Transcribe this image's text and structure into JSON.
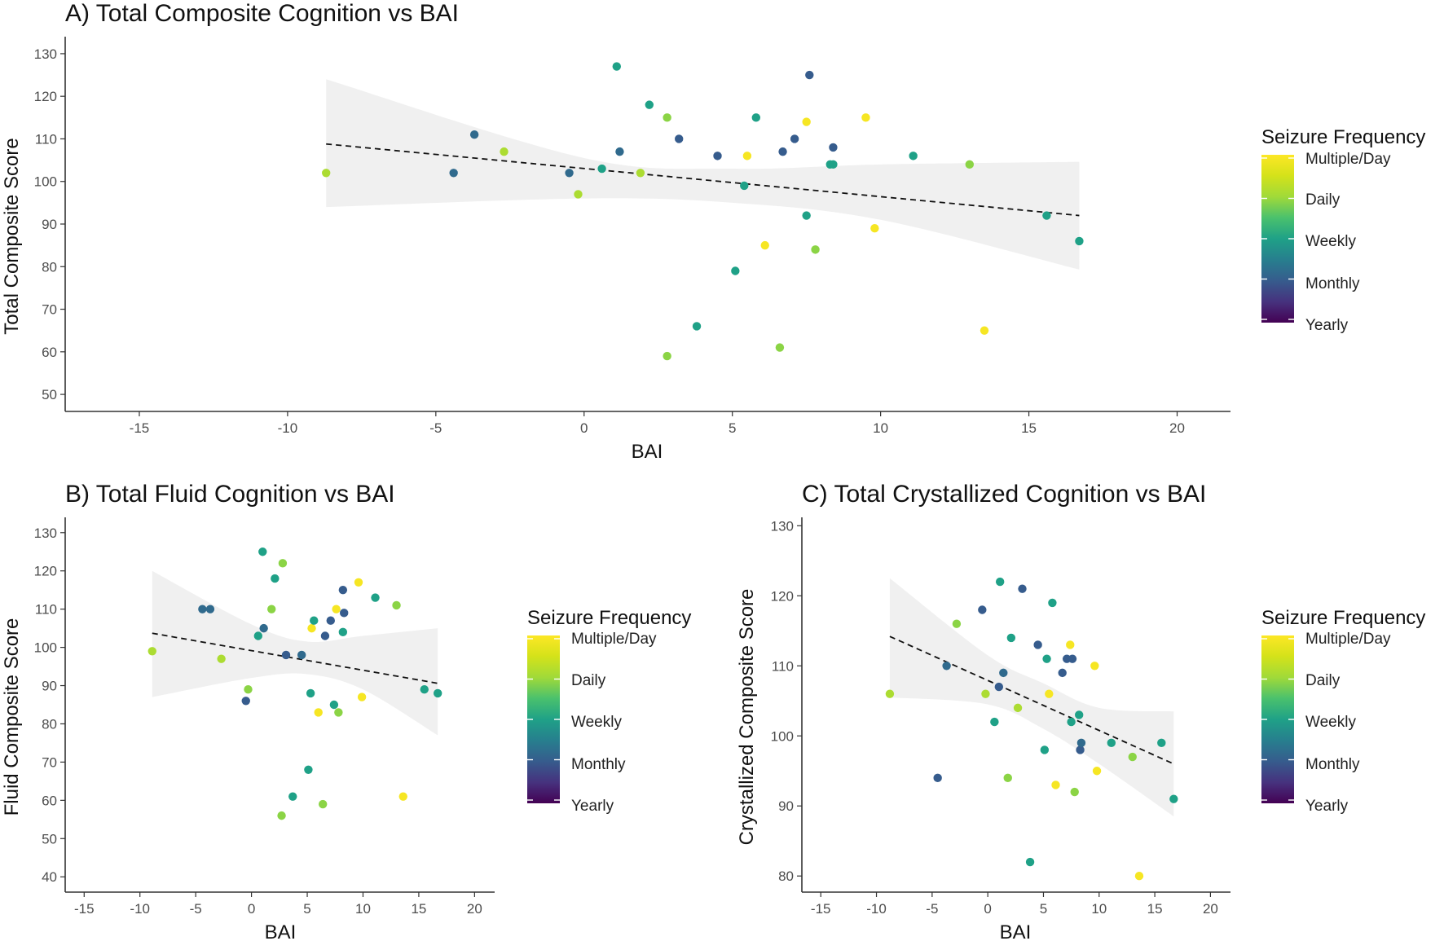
{
  "colors": {
    "Yearly": "#440154",
    "Monthly": "#3b528b",
    "Weekly": "#21908c",
    "Daily": "#5dc963",
    "Multiple/Day": "#fde725",
    "band": "#d9d9d9",
    "fit": "#111111"
  },
  "legend": {
    "title": "Seizure Frequency",
    "labels": [
      "Multiple/Day",
      "Daily",
      "Weekly",
      "Monthly",
      "Yearly"
    ]
  },
  "chart_data": [
    {
      "id": "A",
      "type": "scatter",
      "title": "A) Total Composite Cognition vs BAI",
      "xlabel": "BAI",
      "ylabel": "Total Composite Score",
      "xlim": [
        -17.5,
        21.8
      ],
      "ylim": [
        46,
        134
      ],
      "xticks": [
        -15,
        -10,
        -5,
        0,
        5,
        10,
        15,
        20
      ],
      "yticks": [
        50,
        60,
        70,
        80,
        90,
        100,
        110,
        120,
        130
      ],
      "fit": {
        "x": [
          -8.7,
          16.7
        ],
        "y": [
          108.8,
          92.0
        ]
      },
      "band": {
        "x": [
          -8.7,
          0,
          5,
          10,
          16.7
        ],
        "lower": [
          94,
          96,
          95,
          91,
          79.3
        ],
        "upper": [
          124,
          105.5,
          103,
          104,
          104.6
        ]
      },
      "points": [
        {
          "x": -8.7,
          "y": 102,
          "c": 0.78
        },
        {
          "x": -4.4,
          "y": 102,
          "c": 0.3
        },
        {
          "x": -3.7,
          "y": 111,
          "c": 0.3
        },
        {
          "x": -2.7,
          "y": 107,
          "c": 0.78
        },
        {
          "x": -0.5,
          "y": 102,
          "c": 0.3
        },
        {
          "x": -0.2,
          "y": 97,
          "c": 0.78
        },
        {
          "x": 0.6,
          "y": 103,
          "c": 0.5
        },
        {
          "x": 1.1,
          "y": 127,
          "c": 0.5
        },
        {
          "x": 1.2,
          "y": 107,
          "c": 0.3
        },
        {
          "x": 1.9,
          "y": 102,
          "c": 0.78
        },
        {
          "x": 2.2,
          "y": 118,
          "c": 0.5
        },
        {
          "x": 2.8,
          "y": 115,
          "c": 0.72
        },
        {
          "x": 2.8,
          "y": 59,
          "c": 0.72
        },
        {
          "x": 3.2,
          "y": 110,
          "c": 0.25
        },
        {
          "x": 3.8,
          "y": 66,
          "c": 0.5
        },
        {
          "x": 4.5,
          "y": 106,
          "c": 0.25
        },
        {
          "x": 5.1,
          "y": 79,
          "c": 0.5
        },
        {
          "x": 5.4,
          "y": 99,
          "c": 0.5
        },
        {
          "x": 5.5,
          "y": 106,
          "c": 0.98
        },
        {
          "x": 5.8,
          "y": 115,
          "c": 0.5
        },
        {
          "x": 6.1,
          "y": 85,
          "c": 0.98
        },
        {
          "x": 6.6,
          "y": 61,
          "c": 0.72
        },
        {
          "x": 6.7,
          "y": 107,
          "c": 0.25
        },
        {
          "x": 7.1,
          "y": 110,
          "c": 0.25
        },
        {
          "x": 7.5,
          "y": 114,
          "c": 0.98
        },
        {
          "x": 7.5,
          "y": 92,
          "c": 0.5
        },
        {
          "x": 7.6,
          "y": 125,
          "c": 0.25
        },
        {
          "x": 7.8,
          "y": 84,
          "c": 0.72
        },
        {
          "x": 8.3,
          "y": 104,
          "c": 0.5
        },
        {
          "x": 8.4,
          "y": 104,
          "c": 0.5
        },
        {
          "x": 8.4,
          "y": 108,
          "c": 0.25
        },
        {
          "x": 9.5,
          "y": 115,
          "c": 0.98
        },
        {
          "x": 9.8,
          "y": 89,
          "c": 0.98
        },
        {
          "x": 11.1,
          "y": 106,
          "c": 0.5
        },
        {
          "x": 13.0,
          "y": 104,
          "c": 0.72
        },
        {
          "x": 13.5,
          "y": 65,
          "c": 0.98
        },
        {
          "x": 15.6,
          "y": 92,
          "c": 0.5
        },
        {
          "x": 16.7,
          "y": 86,
          "c": 0.5
        }
      ]
    },
    {
      "id": "B",
      "type": "scatter",
      "title": "B) Total Fluid Cognition vs BAI",
      "xlabel": "BAI",
      "ylabel": "Fluid Composite Score",
      "xlim": [
        -16.7,
        21.8
      ],
      "ylim": [
        36,
        134
      ],
      "xticks": [
        -15,
        -10,
        -5,
        0,
        5,
        10,
        15,
        20
      ],
      "yticks": [
        40,
        50,
        60,
        70,
        80,
        90,
        100,
        110,
        120,
        130
      ],
      "fit": {
        "x": [
          -8.9,
          16.7
        ],
        "y": [
          103.7,
          90.6
        ]
      },
      "band": {
        "x": [
          -8.9,
          0,
          5,
          10,
          16.7
        ],
        "lower": [
          87,
          92,
          93,
          89,
          77
        ],
        "upper": [
          120,
          106,
          101.5,
          103,
          105
        ]
      },
      "points": [
        {
          "x": -8.9,
          "y": 99,
          "c": 0.78
        },
        {
          "x": -4.4,
          "y": 110,
          "c": 0.3
        },
        {
          "x": -3.7,
          "y": 110,
          "c": 0.3
        },
        {
          "x": -2.7,
          "y": 97,
          "c": 0.78
        },
        {
          "x": -0.5,
          "y": 86,
          "c": 0.25
        },
        {
          "x": -0.3,
          "y": 89,
          "c": 0.72
        },
        {
          "x": 0.6,
          "y": 103,
          "c": 0.5
        },
        {
          "x": 1.0,
          "y": 125,
          "c": 0.5
        },
        {
          "x": 1.1,
          "y": 105,
          "c": 0.3
        },
        {
          "x": 1.8,
          "y": 110,
          "c": 0.72
        },
        {
          "x": 2.1,
          "y": 118,
          "c": 0.5
        },
        {
          "x": 2.7,
          "y": 56,
          "c": 0.72
        },
        {
          "x": 2.8,
          "y": 122,
          "c": 0.72
        },
        {
          "x": 3.1,
          "y": 98,
          "c": 0.25
        },
        {
          "x": 3.7,
          "y": 61,
          "c": 0.5
        },
        {
          "x": 4.5,
          "y": 98,
          "c": 0.3
        },
        {
          "x": 5.1,
          "y": 68,
          "c": 0.5
        },
        {
          "x": 5.3,
          "y": 88,
          "c": 0.5
        },
        {
          "x": 5.4,
          "y": 105,
          "c": 0.98
        },
        {
          "x": 5.6,
          "y": 107,
          "c": 0.5
        },
        {
          "x": 6.0,
          "y": 83,
          "c": 0.98
        },
        {
          "x": 6.4,
          "y": 59,
          "c": 0.72
        },
        {
          "x": 6.6,
          "y": 103,
          "c": 0.25
        },
        {
          "x": 7.1,
          "y": 107,
          "c": 0.25
        },
        {
          "x": 7.4,
          "y": 85,
          "c": 0.5
        },
        {
          "x": 7.6,
          "y": 110,
          "c": 0.98
        },
        {
          "x": 7.8,
          "y": 83,
          "c": 0.72
        },
        {
          "x": 8.2,
          "y": 115,
          "c": 0.25
        },
        {
          "x": 8.2,
          "y": 104,
          "c": 0.5
        },
        {
          "x": 8.3,
          "y": 109,
          "c": 0.25
        },
        {
          "x": 9.6,
          "y": 117,
          "c": 0.98
        },
        {
          "x": 9.9,
          "y": 87,
          "c": 0.98
        },
        {
          "x": 11.1,
          "y": 113,
          "c": 0.5
        },
        {
          "x": 13.0,
          "y": 111,
          "c": 0.72
        },
        {
          "x": 13.6,
          "y": 61,
          "c": 0.98
        },
        {
          "x": 15.5,
          "y": 89,
          "c": 0.5
        },
        {
          "x": 16.7,
          "y": 88,
          "c": 0.5
        }
      ]
    },
    {
      "id": "C",
      "type": "scatter",
      "title": "C) Total Crystallized Cognition vs BAI",
      "xlabel": "BAI",
      "ylabel": "Crystallized Composite Score",
      "xlim": [
        -16.7,
        21.8
      ],
      "ylim": [
        77.7,
        131.2
      ],
      "xticks": [
        -15,
        -10,
        -5,
        0,
        5,
        10,
        15,
        20
      ],
      "yticks": [
        80,
        90,
        100,
        110,
        120,
        130
      ],
      "fit": {
        "x": [
          -8.8,
          16.7
        ],
        "y": [
          114.2,
          96.0
        ]
      },
      "band": {
        "x": [
          -8.8,
          0,
          5,
          10,
          16.7
        ],
        "lower": [
          105.5,
          104.5,
          101,
          96,
          88.5
        ],
        "upper": [
          122.5,
          111.5,
          107.5,
          104,
          103.5
        ]
      },
      "points": [
        {
          "x": -8.8,
          "y": 106,
          "c": 0.78
        },
        {
          "x": -4.5,
          "y": 94,
          "c": 0.25
        },
        {
          "x": -3.7,
          "y": 110,
          "c": 0.3
        },
        {
          "x": -2.8,
          "y": 116,
          "c": 0.72
        },
        {
          "x": -0.5,
          "y": 118,
          "c": 0.25
        },
        {
          "x": -0.2,
          "y": 106,
          "c": 0.78
        },
        {
          "x": 0.6,
          "y": 102,
          "c": 0.5
        },
        {
          "x": 1.0,
          "y": 107,
          "c": 0.25
        },
        {
          "x": 1.1,
          "y": 122,
          "c": 0.5
        },
        {
          "x": 1.4,
          "y": 109,
          "c": 0.3
        },
        {
          "x": 1.8,
          "y": 94,
          "c": 0.72
        },
        {
          "x": 2.1,
          "y": 114,
          "c": 0.5
        },
        {
          "x": 2.7,
          "y": 104,
          "c": 0.78
        },
        {
          "x": 3.1,
          "y": 121,
          "c": 0.25
        },
        {
          "x": 3.8,
          "y": 82,
          "c": 0.5
        },
        {
          "x": 4.5,
          "y": 113,
          "c": 0.25
        },
        {
          "x": 5.1,
          "y": 98,
          "c": 0.5
        },
        {
          "x": 5.3,
          "y": 111,
          "c": 0.5
        },
        {
          "x": 5.5,
          "y": 106,
          "c": 0.98
        },
        {
          "x": 5.8,
          "y": 119,
          "c": 0.5
        },
        {
          "x": 6.1,
          "y": 93,
          "c": 0.98
        },
        {
          "x": 6.7,
          "y": 109,
          "c": 0.25
        },
        {
          "x": 7.1,
          "y": 111,
          "c": 0.25
        },
        {
          "x": 7.4,
          "y": 113,
          "c": 0.98
        },
        {
          "x": 7.5,
          "y": 102,
          "c": 0.5
        },
        {
          "x": 7.6,
          "y": 111,
          "c": 0.25
        },
        {
          "x": 7.8,
          "y": 92,
          "c": 0.72
        },
        {
          "x": 8.2,
          "y": 103,
          "c": 0.5
        },
        {
          "x": 8.3,
          "y": 98,
          "c": 0.25
        },
        {
          "x": 8.4,
          "y": 99,
          "c": 0.3
        },
        {
          "x": 9.6,
          "y": 110,
          "c": 0.98
        },
        {
          "x": 9.8,
          "y": 95,
          "c": 0.98
        },
        {
          "x": 11.1,
          "y": 99,
          "c": 0.5
        },
        {
          "x": 13.0,
          "y": 97,
          "c": 0.72
        },
        {
          "x": 13.6,
          "y": 80,
          "c": 0.98
        },
        {
          "x": 15.6,
          "y": 99,
          "c": 0.5
        },
        {
          "x": 16.7,
          "y": 91,
          "c": 0.5
        }
      ]
    }
  ]
}
